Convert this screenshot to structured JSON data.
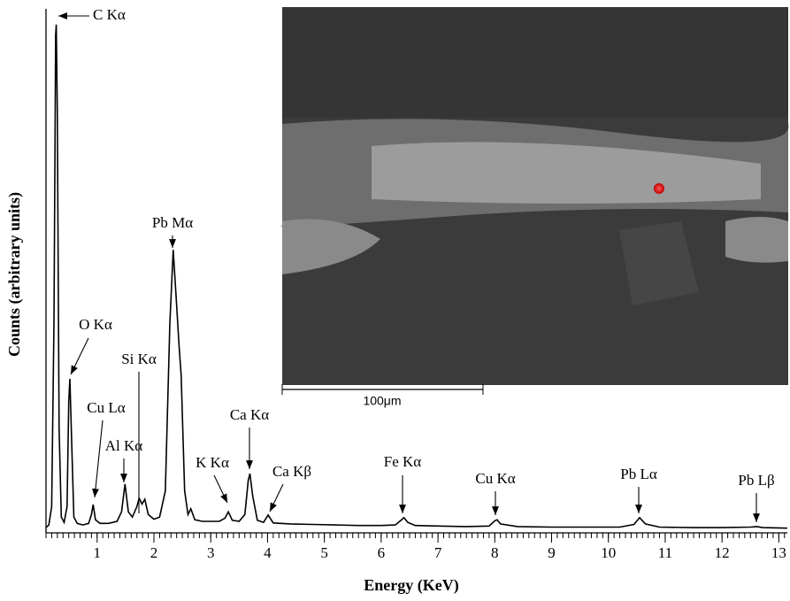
{
  "chart_data": {
    "type": "line",
    "x_label": "Energy (KeV)",
    "y_label": "Counts (arbitrary units)",
    "x": [
      0.1,
      0.15,
      0.2,
      0.24,
      0.27,
      0.28,
      0.3,
      0.33,
      0.37,
      0.42,
      0.47,
      0.5,
      0.52,
      0.55,
      0.59,
      0.65,
      0.75,
      0.85,
      0.9,
      0.93,
      0.97,
      1.05,
      1.2,
      1.35,
      1.43,
      1.49,
      1.55,
      1.62,
      1.7,
      1.74,
      1.79,
      1.84,
      1.9,
      2.0,
      2.1,
      2.2,
      2.28,
      2.34,
      2.39,
      2.44,
      2.48,
      2.54,
      2.6,
      2.65,
      2.72,
      2.85,
      3.0,
      3.15,
      3.25,
      3.31,
      3.38,
      3.5,
      3.6,
      3.66,
      3.69,
      3.74,
      3.82,
      3.93,
      4.01,
      4.1,
      4.4,
      4.8,
      5.2,
      5.6,
      6.0,
      6.25,
      6.35,
      6.4,
      6.47,
      6.6,
      7.0,
      7.5,
      7.9,
      8.0,
      8.04,
      8.1,
      8.4,
      9.0,
      9.6,
      10.2,
      10.45,
      10.55,
      10.65,
      10.9,
      11.5,
      12.0,
      12.5,
      12.61,
      12.72,
      13.15
    ],
    "values": [
      1.0,
      1.5,
      5,
      40,
      95,
      97,
      80,
      20,
      3,
      2,
      5,
      25,
      29.4,
      18,
      3,
      1.8,
      1.5,
      1.8,
      3.5,
      5.4,
      2.5,
      1.8,
      1.8,
      2.2,
      4,
      9.3,
      4,
      3,
      5,
      6.6,
      5.5,
      6.4,
      3.5,
      2.6,
      3,
      8,
      40,
      54,
      45,
      36,
      30,
      8,
      3.5,
      4.6,
      2.5,
      2.2,
      2.2,
      2.2,
      2.8,
      4,
      2.4,
      2.2,
      3.5,
      10,
      11.3,
      7,
      2.4,
      2,
      3.4,
      1.9,
      1.7,
      1.6,
      1.5,
      1.4,
      1.4,
      1.5,
      2.4,
      2.9,
      2,
      1.4,
      1.3,
      1.2,
      1.3,
      2.3,
      2.5,
      1.7,
      1.2,
      1.1,
      1.1,
      1.1,
      1.6,
      2.9,
      1.7,
      1.1,
      1.0,
      1.0,
      1.1,
      1.2,
      1.0,
      0.9
    ],
    "color": "#000000",
    "xlim": [
      0.1,
      13.15
    ],
    "ylim": [
      0,
      100
    ],
    "xticks": [
      1,
      2,
      3,
      4,
      5,
      6,
      7,
      8,
      9,
      10,
      11,
      12,
      13
    ],
    "annotations": [
      "C Kα",
      "O Kα",
      "Cu Lα",
      "Si Kα",
      "Al Kα",
      "Pb Mα",
      "K Kα",
      "Ca Kα",
      "Ca Kβ",
      "Fe Kα",
      "Cu Kα",
      "Pb Lα",
      "Pb Lβ"
    ]
  },
  "inset": {
    "scale_label": "100μm"
  }
}
